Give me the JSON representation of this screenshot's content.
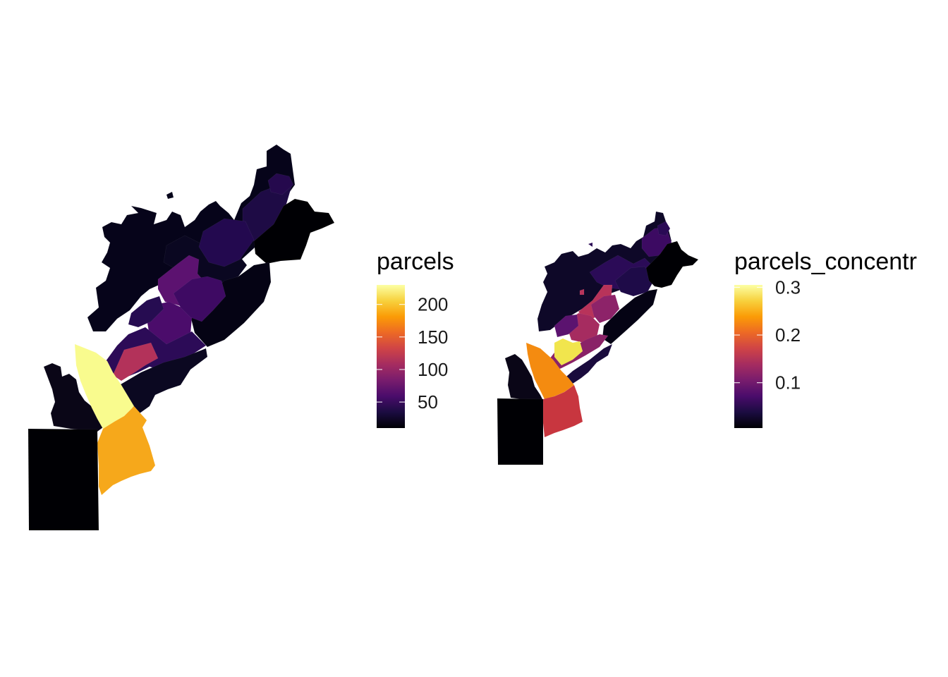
{
  "palette": {
    "name": "inferno",
    "stops": [
      "#000004",
      "#1b0c41",
      "#4a0c6b",
      "#781c6d",
      "#a52c60",
      "#cf4446",
      "#ed6925",
      "#fb9b06",
      "#f7d13d",
      "#fcffa4"
    ]
  },
  "maps": [
    {
      "legend": {
        "title": "parcels",
        "ticks": [
          {
            "label": "200",
            "value": 200
          },
          {
            "label": "150",
            "value": 150
          },
          {
            "label": "100",
            "value": 100
          },
          {
            "label": "50",
            "value": 50
          }
        ],
        "range": [
          10,
          230
        ]
      },
      "regions": [
        {
          "id": "rect-county",
          "color": "#000004"
        },
        {
          "id": "west-lobe",
          "color": "#0a0617"
        },
        {
          "id": "wedge-top",
          "color": "#f9fb8e"
        },
        {
          "id": "wedge-bottom",
          "color": "#f6a81b"
        },
        {
          "id": "strip-south",
          "color": "#0b0821"
        },
        {
          "id": "strip-mid",
          "color": "#2c0b57"
        },
        {
          "id": "red-patch",
          "color": "#b3325a"
        },
        {
          "id": "central-a",
          "color": "#5c1270"
        },
        {
          "id": "central-b",
          "color": "#4b0c6b"
        },
        {
          "id": "central-c",
          "color": "#3e0a63"
        },
        {
          "id": "central-d",
          "color": "#260c51"
        },
        {
          "id": "se-block",
          "color": "#050314"
        },
        {
          "id": "ne-block-a",
          "color": "#1e0b45"
        },
        {
          "id": "ne-block-b",
          "color": "#23094f"
        },
        {
          "id": "ne-tip",
          "color": "#25094d"
        },
        {
          "id": "far-east",
          "color": "#000004"
        },
        {
          "id": "north-mass",
          "color": "#06041a"
        },
        {
          "id": "north-tract",
          "color": "#0a0721"
        }
      ]
    },
    {
      "legend": {
        "title": "parcels_concentr",
        "ticks": [
          {
            "label": "0.3",
            "value": 0.3
          },
          {
            "label": "0.2",
            "value": 0.2
          },
          {
            "label": "0.1",
            "value": 0.1
          }
        ],
        "range": [
          0.005,
          0.305
        ]
      },
      "regions": [
        {
          "id": "rect-county",
          "color": "#000004"
        },
        {
          "id": "west-lobe",
          "color": "#0a0617"
        },
        {
          "id": "wedge-top",
          "color": "#f48b10"
        },
        {
          "id": "wedge-bottom",
          "color": "#c8363f"
        },
        {
          "id": "strip-south",
          "color": "#1a0b3d"
        },
        {
          "id": "strip-mid",
          "color": "#8a2267"
        },
        {
          "id": "yellow-patch",
          "color": "#f1e54d"
        },
        {
          "id": "central-a",
          "color": "#b8335a"
        },
        {
          "id": "central-b",
          "color": "#a62c60"
        },
        {
          "id": "central-c",
          "color": "#8d2369"
        },
        {
          "id": "central-d",
          "color": "#5b136f"
        },
        {
          "id": "se-block",
          "color": "#050314"
        },
        {
          "id": "ne-block-a",
          "color": "#3c0a62"
        },
        {
          "id": "ne-block-b",
          "color": "#1e0b48"
        },
        {
          "id": "ne-tip",
          "color": "#2a0a55"
        },
        {
          "id": "far-east",
          "color": "#000004"
        },
        {
          "id": "north-mass",
          "color": "#0e0828"
        },
        {
          "id": "north-tract",
          "color": "#2b0b57"
        }
      ]
    }
  ]
}
